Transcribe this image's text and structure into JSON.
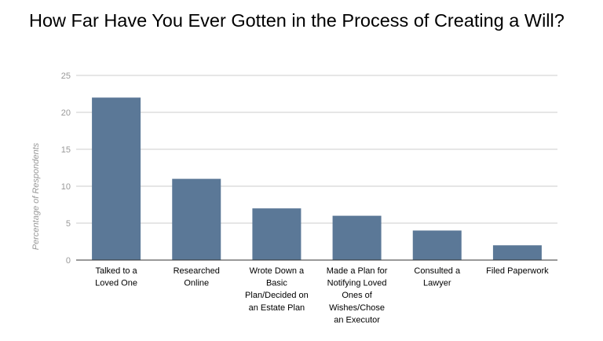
{
  "chart_data": {
    "type": "bar",
    "title": "How Far Have You Ever Gotten in the Process of Creating a Will?",
    "xlabel": "",
    "ylabel": "Percentage of Respondents",
    "ylim": [
      0,
      25
    ],
    "yticks": [
      "0",
      "5",
      "10",
      "15",
      "20",
      "25"
    ],
    "grid": true,
    "categories": [
      [
        "Talked to a",
        "Loved One"
      ],
      [
        "Researched",
        "Online"
      ],
      [
        "Wrote Down a",
        "Basic",
        "Plan/Decided on",
        "an Estate Plan"
      ],
      [
        "Made a Plan for",
        "Notifying Loved",
        "Ones of",
        "Wishes/Chose",
        "an Executor"
      ],
      [
        "Consulted a",
        "Lawyer"
      ],
      [
        "Filed Paperwork"
      ]
    ],
    "values": [
      22,
      11,
      7,
      6,
      4,
      2
    ],
    "bar_color": "#5b7897"
  }
}
